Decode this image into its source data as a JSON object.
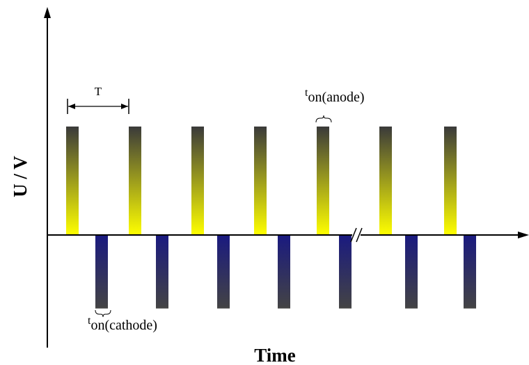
{
  "chart_data": {
    "type": "bar",
    "title": "",
    "xlabel": "Time",
    "ylabel": "U / V",
    "grid": false,
    "legend": "none",
    "axis_break": "x",
    "series": [
      {
        "values": [
          1,
          1,
          1,
          1,
          1,
          1,
          1
        ]
      },
      {
        "values": [
          -0.7,
          -0.7,
          -0.7,
          -0.7,
          -0.7,
          -0.7,
          -0.7
        ]
      }
    ],
    "annotations": {
      "period": "T",
      "anode": {
        "t": "t",
        "sub": "on",
        "rest": "(anode)"
      },
      "cathode": {
        "t": "t",
        "sub": "on",
        "rest": "(cathode)"
      }
    },
    "colors": {
      "anode_top": "#3a3a3a",
      "anode_bottom": "#ffff00",
      "cathode_top": "#1a1a80",
      "cathode_bottom": "#444444",
      "axis": "#000000"
    }
  }
}
